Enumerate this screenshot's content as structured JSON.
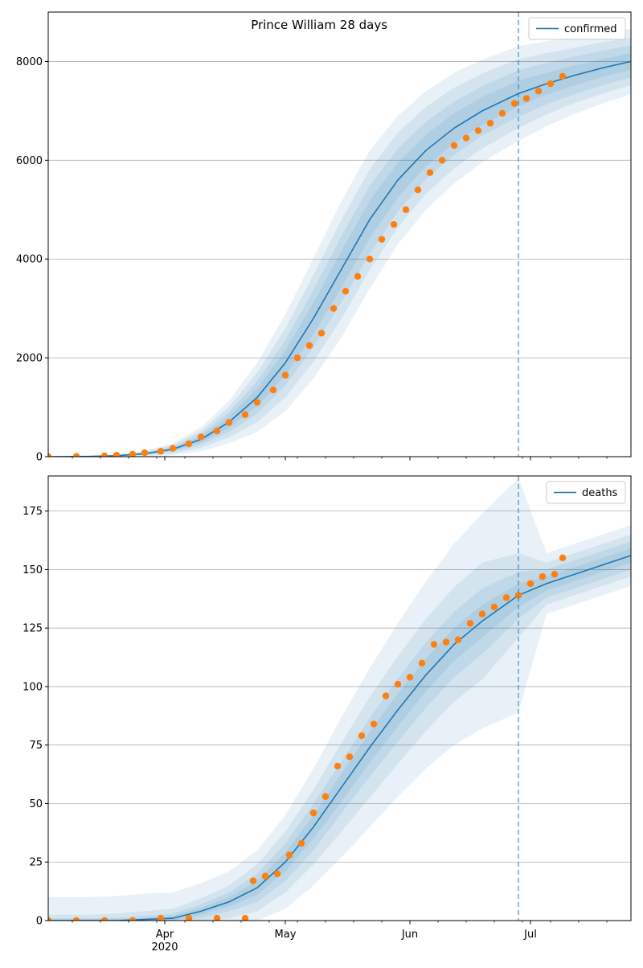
{
  "figure": {
    "colors": {
      "model_line": "#1f77b4",
      "band": "#1f77b4",
      "observed": "#ff7f0e",
      "grid": "#b0b0b0",
      "divider": "#1f77b4"
    },
    "x_axis": {
      "tick_labels": [
        {
          "date": "2020-04-01",
          "label": "Apr",
          "sublabel": "2020"
        },
        {
          "date": "2020-05-01",
          "label": "May",
          "sublabel": ""
        },
        {
          "date": "2020-06-01",
          "label": "Jun",
          "sublabel": ""
        },
        {
          "date": "2020-07-01",
          "label": "Jul",
          "sublabel": ""
        }
      ],
      "range": [
        "2020-03-03",
        "2020-07-26"
      ],
      "forecast_start": "2020-06-28"
    }
  },
  "chart_data": [
    {
      "type": "line",
      "title": "Prince William 28 days",
      "legend": {
        "label": "confirmed",
        "position": "top-right"
      },
      "ylim": [
        0,
        9000
      ],
      "yticks": [
        0,
        2000,
        4000,
        6000,
        8000
      ],
      "grid": "horizontal",
      "model": {
        "x": [
          "2020-03-03",
          "2020-03-13",
          "2020-03-20",
          "2020-03-27",
          "2020-04-03",
          "2020-04-10",
          "2020-04-17",
          "2020-04-24",
          "2020-05-01",
          "2020-05-08",
          "2020-05-15",
          "2020-05-22",
          "2020-05-29",
          "2020-06-05",
          "2020-06-12",
          "2020-06-19",
          "2020-06-28",
          "2020-07-05",
          "2020-07-12",
          "2020-07-19",
          "2020-07-26"
        ],
        "y": [
          0,
          5,
          20,
          60,
          150,
          350,
          700,
          1200,
          1900,
          2800,
          3800,
          4800,
          5600,
          6200,
          6650,
          7000,
          7350,
          7550,
          7720,
          7870,
          8000
        ],
        "band_half_widths": [
          [
            0,
            2,
            5,
            12,
            30,
            60,
            110,
            180,
            250,
            320,
            370,
            380,
            350,
            320,
            300,
            280,
            260,
            220,
            200,
            180,
            170
          ],
          [
            0,
            4,
            10,
            25,
            55,
            110,
            200,
            330,
            460,
            580,
            670,
            690,
            640,
            580,
            540,
            500,
            470,
            420,
            380,
            350,
            320
          ],
          [
            0,
            6,
            16,
            40,
            85,
            170,
            310,
            500,
            700,
            880,
            1000,
            1020,
            960,
            880,
            820,
            760,
            700,
            620,
            560,
            520,
            480
          ],
          [
            0,
            8,
            22,
            55,
            120,
            240,
            430,
            700,
            980,
            1220,
            1380,
            1400,
            1300,
            1200,
            1120,
            1040,
            960,
            860,
            780,
            720,
            660
          ]
        ]
      },
      "observed": {
        "x": [
          "2020-03-03",
          "2020-03-10",
          "2020-03-17",
          "2020-03-20",
          "2020-03-24",
          "2020-03-27",
          "2020-03-31",
          "2020-04-03",
          "2020-04-07",
          "2020-04-10",
          "2020-04-14",
          "2020-04-17",
          "2020-04-21",
          "2020-04-24",
          "2020-04-28",
          "2020-05-01",
          "2020-05-04",
          "2020-05-07",
          "2020-05-10",
          "2020-05-13",
          "2020-05-16",
          "2020-05-19",
          "2020-05-22",
          "2020-05-25",
          "2020-05-28",
          "2020-05-31",
          "2020-06-03",
          "2020-06-06",
          "2020-06-09",
          "2020-06-12",
          "2020-06-15",
          "2020-06-18",
          "2020-06-21",
          "2020-06-24",
          "2020-06-27",
          "2020-06-30",
          "2020-07-03",
          "2020-07-06",
          "2020-07-09"
        ],
        "y": [
          0,
          5,
          15,
          30,
          50,
          80,
          110,
          170,
          260,
          400,
          520,
          690,
          850,
          1100,
          1350,
          1650,
          2000,
          2250,
          2500,
          3000,
          3350,
          3650,
          4000,
          4400,
          4700,
          5000,
          5400,
          5750,
          6000,
          6300,
          6450,
          6600,
          6750,
          6950,
          7150,
          7250,
          7400,
          7550,
          7700
        ]
      }
    },
    {
      "type": "line",
      "title": "",
      "legend": {
        "label": "deaths",
        "position": "top-right"
      },
      "ylim": [
        0,
        190
      ],
      "yticks": [
        0,
        25,
        50,
        75,
        100,
        125,
        150,
        175
      ],
      "grid": "horizontal",
      "model": {
        "x": [
          "2020-03-03",
          "2020-03-13",
          "2020-03-20",
          "2020-03-27",
          "2020-04-03",
          "2020-04-10",
          "2020-04-17",
          "2020-04-24",
          "2020-05-01",
          "2020-05-08",
          "2020-05-15",
          "2020-05-22",
          "2020-05-29",
          "2020-06-05",
          "2020-06-12",
          "2020-06-19",
          "2020-06-28",
          "2020-07-05",
          "2020-07-12",
          "2020-07-19",
          "2020-07-26"
        ],
        "y": [
          0,
          0,
          0,
          0.5,
          1,
          4,
          8,
          14,
          25,
          40,
          57,
          74,
          90,
          105,
          118,
          128,
          139,
          144,
          148,
          152,
          156
        ],
        "band_half_widths": [
          [
            0,
            0.5,
            0.5,
            0.5,
            1,
            1.5,
            2,
            3,
            4,
            5,
            6,
            6.5,
            7,
            7,
            7,
            7,
            5,
            3,
            3,
            3,
            3
          ],
          [
            1,
            1,
            1.2,
            1.5,
            2,
            3,
            4,
            6,
            8,
            10,
            11,
            12.5,
            13.5,
            14,
            14,
            14,
            10,
            6,
            6,
            6,
            6
          ],
          [
            2.5,
            2.5,
            3,
            3.5,
            4,
            5.5,
            7,
            10,
            13,
            16,
            19,
            21.5,
            23,
            24,
            24.5,
            25,
            18,
            9,
            9,
            9,
            9
          ],
          [
            10,
            10,
            10.5,
            11,
            11,
            12,
            13,
            16,
            20,
            25,
            30,
            34,
            37,
            40,
            43,
            46,
            50,
            13,
            13,
            13,
            13
          ]
        ]
      },
      "observed": {
        "x": [
          "2020-03-03",
          "2020-03-10",
          "2020-03-17",
          "2020-03-24",
          "2020-03-31",
          "2020-04-07",
          "2020-04-14",
          "2020-04-21",
          "2020-04-23",
          "2020-04-26",
          "2020-04-29",
          "2020-05-02",
          "2020-05-05",
          "2020-05-08",
          "2020-05-11",
          "2020-05-14",
          "2020-05-17",
          "2020-05-20",
          "2020-05-23",
          "2020-05-26",
          "2020-05-29",
          "2020-06-01",
          "2020-06-04",
          "2020-06-07",
          "2020-06-10",
          "2020-06-13",
          "2020-06-16",
          "2020-06-19",
          "2020-06-22",
          "2020-06-25",
          "2020-06-28",
          "2020-07-01",
          "2020-07-04",
          "2020-07-07",
          "2020-07-09"
        ],
        "y": [
          0,
          0,
          0,
          0,
          1,
          1,
          1,
          1,
          17,
          19,
          20,
          28,
          33,
          46,
          53,
          66,
          70,
          79,
          84,
          96,
          101,
          104,
          110,
          118,
          119,
          120,
          127,
          131,
          134,
          138,
          139,
          144,
          147,
          148,
          155
        ]
      }
    }
  ]
}
